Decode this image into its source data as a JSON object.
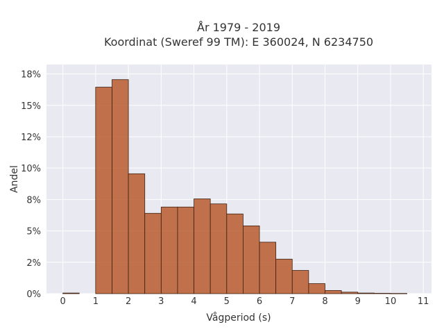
{
  "chart_data": {
    "type": "bar",
    "title_line1": "År 1979 - 2019",
    "title_line2": "Koordinat (Sweref 99 TM): E 360024, N 6234750",
    "xlabel": "Vågperiod (s)",
    "ylabel": "Andel",
    "bin_width": 0.5,
    "bins": [
      {
        "start": 0.0,
        "value": 0.0005
      },
      {
        "start": 1.0,
        "value": 0.1645
      },
      {
        "start": 1.5,
        "value": 0.1705
      },
      {
        "start": 2.0,
        "value": 0.0955
      },
      {
        "start": 2.5,
        "value": 0.064
      },
      {
        "start": 3.0,
        "value": 0.069
      },
      {
        "start": 3.5,
        "value": 0.069
      },
      {
        "start": 4.0,
        "value": 0.0755
      },
      {
        "start": 4.5,
        "value": 0.0715
      },
      {
        "start": 5.0,
        "value": 0.0635
      },
      {
        "start": 5.5,
        "value": 0.054
      },
      {
        "start": 6.0,
        "value": 0.041
      },
      {
        "start": 6.5,
        "value": 0.0275
      },
      {
        "start": 7.0,
        "value": 0.0185
      },
      {
        "start": 7.5,
        "value": 0.008
      },
      {
        "start": 8.0,
        "value": 0.0025
      },
      {
        "start": 8.5,
        "value": 0.0012
      },
      {
        "start": 9.0,
        "value": 0.0005
      },
      {
        "start": 9.5,
        "value": 0.0003
      },
      {
        "start": 10.0,
        "value": 0.0002
      }
    ],
    "xlim": [
      -0.5,
      11.25
    ],
    "ylim": [
      0,
      0.1825
    ],
    "xticks": [
      {
        "value": 0,
        "label": "0"
      },
      {
        "value": 1,
        "label": "1"
      },
      {
        "value": 2,
        "label": "2"
      },
      {
        "value": 3,
        "label": "3"
      },
      {
        "value": 4,
        "label": "4"
      },
      {
        "value": 5,
        "label": "5"
      },
      {
        "value": 6,
        "label": "6"
      },
      {
        "value": 7,
        "label": "7"
      },
      {
        "value": 8,
        "label": "8"
      },
      {
        "value": 9,
        "label": "9"
      },
      {
        "value": 10,
        "label": "10"
      },
      {
        "value": 11,
        "label": "11"
      }
    ],
    "yticks": [
      {
        "value": 0.0,
        "label": "0%"
      },
      {
        "value": 0.025,
        "label": "2%"
      },
      {
        "value": 0.05,
        "label": "5%"
      },
      {
        "value": 0.075,
        "label": "8%"
      },
      {
        "value": 0.1,
        "label": "10%"
      },
      {
        "value": 0.125,
        "label": "12%"
      },
      {
        "value": 0.15,
        "label": "15%"
      },
      {
        "value": 0.175,
        "label": "18%"
      }
    ],
    "grid": true,
    "colors": {
      "bar_fill": "#b85c2e",
      "bar_stroke": "#3d2010",
      "plot_bg": "#e9e9f1",
      "grid": "#ffffff"
    }
  }
}
